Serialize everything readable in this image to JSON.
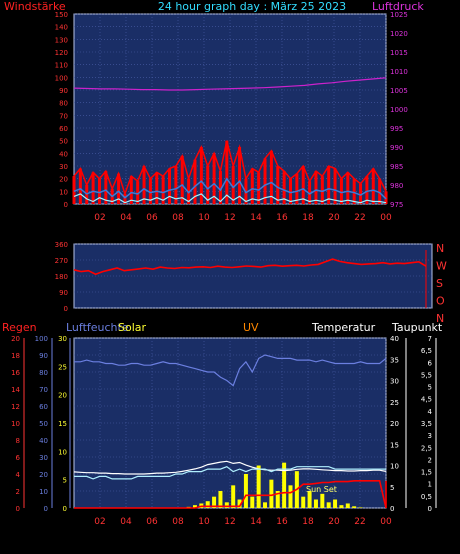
{
  "header": {
    "left_label": "Windstärke",
    "title": "24 hour graph day : März 25 2023",
    "right_label": "Luftdruck"
  },
  "colors": {
    "background": "#000000",
    "plot_bg": "#1a2e66",
    "grid": "#4a5fa8",
    "frame": "#b8c4e8",
    "wind": "#ff0000",
    "wind_avg": "#3d7ad6",
    "wind_min": "#9ff5ff",
    "pressure": "#cc22cc",
    "direction": "#ff0000",
    "humidity": "#6b7fe0",
    "temperature": "#ffffff",
    "dewpoint": "#b0f0ff",
    "rain": "#ff0000",
    "solar": "#ffff00",
    "uv": "#ff8800",
    "sunset": "#ffff66"
  },
  "chart_data": [
    {
      "type": "line",
      "id": "wind-pressure",
      "x_ticks": [
        "02",
        "04",
        "06",
        "08",
        "10",
        "12",
        "14",
        "16",
        "18",
        "20",
        "22",
        "00"
      ],
      "left_axis": {
        "label": "Windstärke",
        "ticks": [
          0,
          10,
          20,
          30,
          40,
          50,
          60,
          70,
          80,
          90,
          100,
          110,
          120,
          130,
          140,
          150
        ],
        "ylim": [
          0,
          150
        ]
      },
      "right_axis": {
        "label": "Luftdruck",
        "ticks": [
          975,
          980,
          985,
          990,
          995,
          1000,
          1005,
          1010,
          1015,
          1020,
          1025
        ],
        "ylim": [
          975,
          1025
        ]
      },
      "series": [
        {
          "name": "wind_max",
          "values": [
            22,
            28,
            15,
            25,
            20,
            26,
            12,
            24,
            8,
            22,
            18,
            30,
            20,
            25,
            22,
            28,
            30,
            38,
            20,
            35,
            45,
            30,
            40,
            26,
            50,
            30,
            45,
            20,
            28,
            25,
            36,
            42,
            30,
            26,
            20,
            24,
            30,
            18,
            26,
            22,
            30,
            28,
            20,
            25,
            20,
            16,
            22,
            28,
            20,
            10
          ]
        },
        {
          "name": "wind_avg",
          "values": [
            10,
            12,
            8,
            10,
            9,
            11,
            6,
            10,
            5,
            9,
            8,
            12,
            9,
            10,
            9,
            11,
            12,
            15,
            9,
            14,
            18,
            12,
            16,
            11,
            20,
            13,
            18,
            9,
            12,
            11,
            15,
            17,
            13,
            11,
            9,
            10,
            12,
            8,
            11,
            10,
            12,
            11,
            9,
            10,
            9,
            7,
            10,
            11,
            9,
            4
          ]
        },
        {
          "name": "wind_min",
          "values": [
            6,
            8,
            4,
            2,
            5,
            3,
            2,
            4,
            1,
            3,
            2,
            4,
            3,
            5,
            3,
            6,
            4,
            5,
            2,
            6,
            8,
            3,
            6,
            2,
            7,
            3,
            6,
            2,
            4,
            3,
            5,
            6,
            3,
            4,
            2,
            3,
            4,
            2,
            3,
            2,
            4,
            3,
            2,
            3,
            2,
            1,
            3,
            2,
            2,
            1
          ]
        },
        {
          "name": "pressure",
          "values": [
            1005.5,
            1005.4,
            1005.3,
            1005.3,
            1005.2,
            1005.1,
            1005.1,
            1005.0,
            1005.0,
            1005.1,
            1005.2,
            1005.3,
            1005.4,
            1005.5,
            1005.6,
            1005.8,
            1006.0,
            1006.2,
            1006.6,
            1006.9,
            1007.3,
            1007.6,
            1007.9,
            1008.2
          ]
        }
      ]
    },
    {
      "type": "line",
      "id": "wind-direction",
      "left_axis": {
        "ticks": [
          0,
          90,
          180,
          270,
          360
        ],
        "ylim": [
          0,
          360
        ]
      },
      "right_labels": [
        "N",
        "W",
        "S",
        "O",
        "N"
      ],
      "series": [
        {
          "name": "direction",
          "values": [
            215,
            205,
            210,
            190,
            205,
            215,
            225,
            210,
            215,
            220,
            225,
            218,
            230,
            225,
            222,
            228,
            226,
            230,
            232,
            228,
            235,
            230,
            228,
            232,
            236,
            234,
            230,
            238,
            240,
            235,
            238,
            240,
            236,
            242,
            245,
            260,
            275,
            262,
            255,
            250,
            245,
            248,
            250,
            255,
            248,
            252,
            250,
            255,
            260,
            235
          ]
        }
      ]
    },
    {
      "type": "line",
      "id": "weather",
      "x_ticks": [
        "02",
        "04",
        "06",
        "08",
        "10",
        "12",
        "14",
        "16",
        "18",
        "20",
        "22",
        "00"
      ],
      "axes": {
        "regen": {
          "label": "Regen",
          "ticks": [
            0,
            2,
            4,
            6,
            8,
            10,
            12,
            14,
            16,
            18,
            20
          ],
          "ylim": [
            0,
            20
          ]
        },
        "luftfeuchte": {
          "label": "Luftfeuchte",
          "ticks": [
            0,
            10,
            20,
            30,
            40,
            50,
            60,
            70,
            80,
            90,
            100
          ],
          "ylim": [
            0,
            100
          ]
        },
        "solar": {
          "label": "Solar",
          "ticks": [
            0,
            5,
            10,
            15,
            20,
            25,
            30
          ],
          "ylim": [
            0,
            30
          ]
        },
        "uv": {
          "label": "UV"
        },
        "temperatur": {
          "label": "Temperatur",
          "ticks": [
            0,
            5,
            10,
            15,
            20,
            25,
            30,
            35,
            40
          ],
          "ylim": [
            0,
            40
          ]
        },
        "taupunkt": {
          "label": "Taupunkt",
          "ticks": [
            "0",
            "0,5",
            "1",
            "1,5",
            "2",
            "2,5",
            "3",
            "3,5",
            "4",
            "4,5",
            "5",
            "5,5",
            "6",
            "6,5",
            "7"
          ],
          "ylim": [
            0,
            7
          ]
        }
      },
      "annotations": [
        "Sun Set"
      ],
      "series": [
        {
          "name": "humidity",
          "values": [
            86,
            86,
            87,
            86,
            86,
            85,
            85,
            84,
            84,
            85,
            85,
            84,
            84,
            85,
            86,
            85,
            85,
            84,
            83,
            82,
            81,
            80,
            80,
            77,
            75,
            72,
            82,
            86,
            80,
            88,
            90,
            89,
            88,
            88,
            88,
            87,
            87,
            87,
            86,
            87,
            86,
            85,
            85,
            85,
            85,
            86,
            85,
            85,
            85,
            88
          ]
        },
        {
          "name": "temperature",
          "values": [
            8.5,
            8.4,
            8.3,
            8.3,
            8.2,
            8.2,
            8.1,
            8.1,
            8.0,
            8.0,
            8.0,
            8.0,
            8.1,
            8.2,
            8.2,
            8.3,
            8.4,
            8.6,
            8.9,
            9.2,
            9.6,
            10.2,
            10.5,
            10.8,
            11.0,
            10.5,
            10.7,
            10.1,
            9.6,
            9.2,
            9.0,
            8.9,
            8.9,
            8.8,
            8.9,
            9.1,
            9.2,
            9.2,
            9.1,
            9.0,
            8.9,
            8.8,
            8.8,
            8.7,
            8.7,
            8.8,
            8.8,
            8.9,
            8.9,
            8.6
          ]
        },
        {
          "name": "dewpoint",
          "values": [
            1.3,
            1.3,
            1.3,
            1.2,
            1.3,
            1.3,
            1.2,
            1.2,
            1.2,
            1.2,
            1.3,
            1.3,
            1.3,
            1.3,
            1.3,
            1.3,
            1.4,
            1.4,
            1.5,
            1.5,
            1.5,
            1.6,
            1.6,
            1.6,
            1.7,
            1.5,
            1.6,
            1.5,
            1.6,
            1.6,
            1.6,
            1.5,
            1.6,
            1.6,
            1.6,
            1.7,
            1.7,
            1.7,
            1.7,
            1.7,
            1.7,
            1.6,
            1.6,
            1.6,
            1.6,
            1.6,
            1.6,
            1.6,
            1.6,
            1.6
          ]
        },
        {
          "name": "rain",
          "values": [
            0,
            0,
            0,
            0,
            0,
            0,
            0,
            0,
            0,
            0,
            0,
            0,
            0,
            0,
            0,
            0,
            0,
            0,
            0,
            0,
            0.2,
            0.2,
            0.2,
            0.2,
            0.2,
            0.2,
            0.2,
            1.5,
            1.5,
            1.5,
            1.5,
            1.5,
            1.7,
            1.8,
            1.8,
            2.2,
            2.8,
            2.8,
            2.9,
            3.0,
            3.0,
            3.1,
            3.1,
            3.1,
            3.2,
            3.2,
            3.2,
            3.2,
            3.2,
            0
          ]
        },
        {
          "name": "solar",
          "values": [
            0,
            0,
            0,
            0,
            0,
            0,
            0,
            0,
            0,
            0,
            0,
            0,
            0,
            0,
            0,
            0,
            0,
            0,
            0.2,
            0.5,
            0.8,
            1.2,
            2.0,
            3.0,
            1.0,
            4.0,
            1.5,
            6.0,
            2.0,
            7.5,
            1.0,
            5.0,
            3.0,
            8.0,
            4.0,
            6.5,
            2.0,
            3.0,
            1.5,
            2.5,
            1.0,
            1.5,
            0.5,
            0.8,
            0.3,
            0.1,
            0,
            0,
            0,
            0
          ]
        }
      ]
    }
  ]
}
